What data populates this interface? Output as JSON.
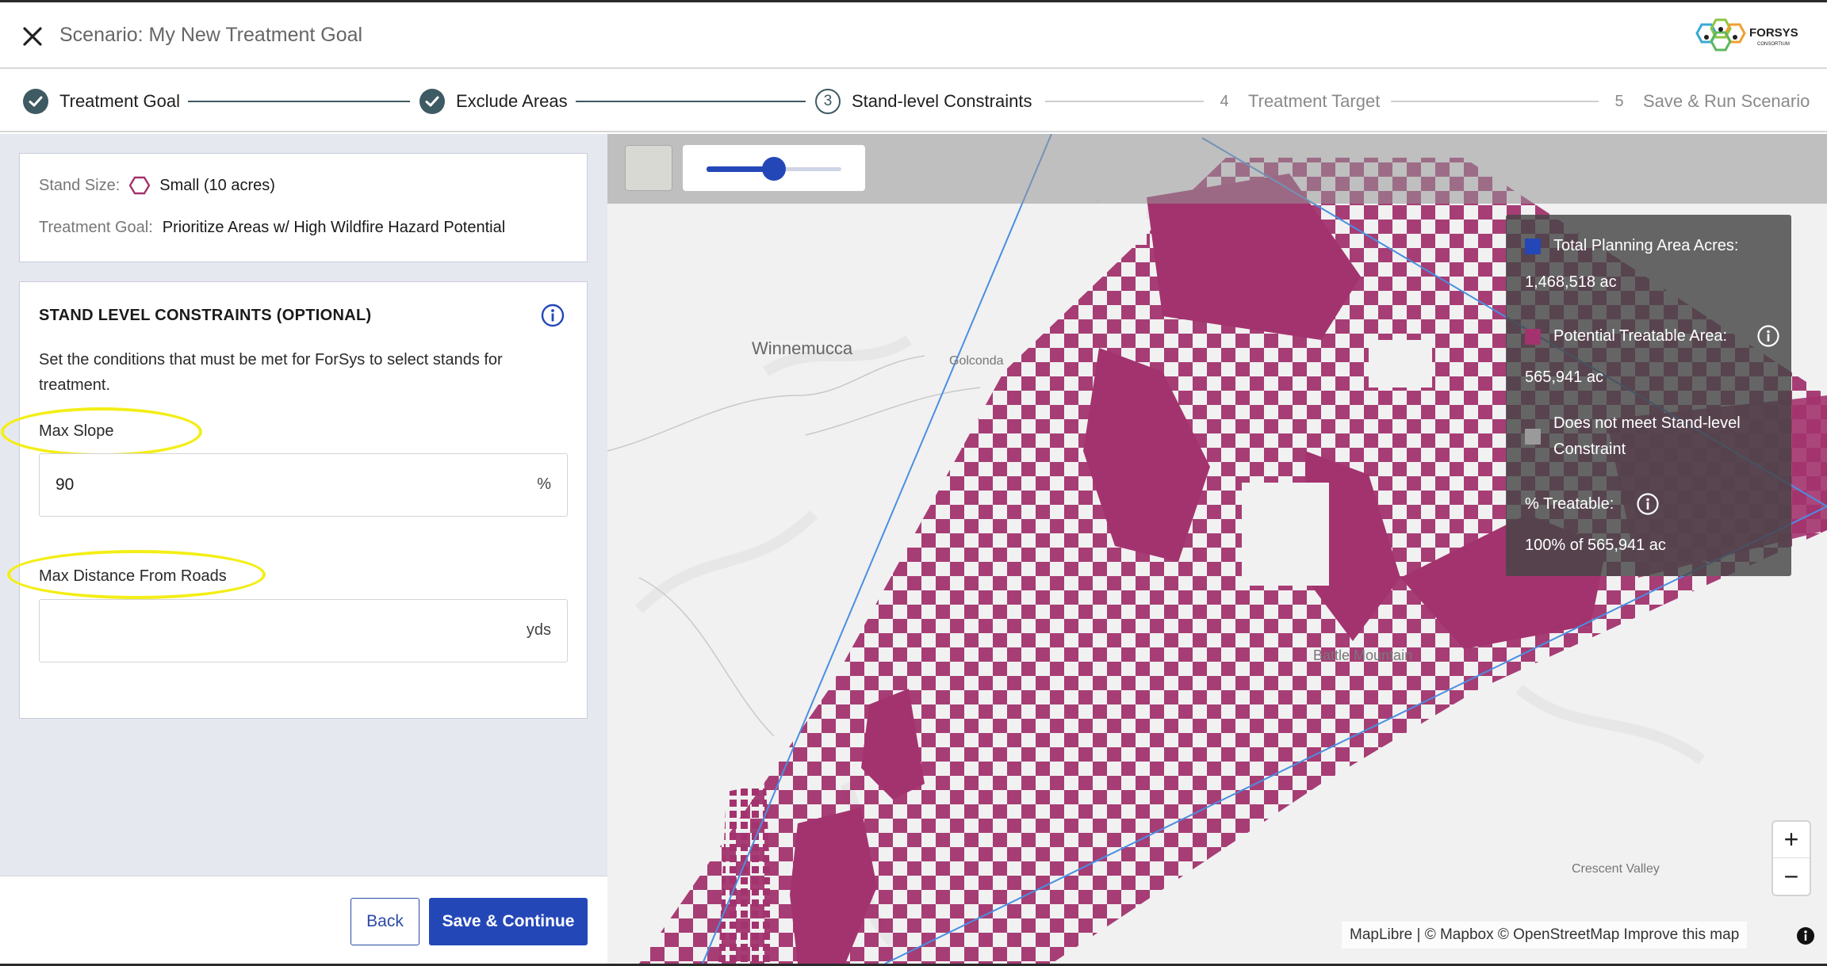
{
  "header": {
    "title": "Scenario: My New Treatment Goal",
    "close_icon": "close-icon",
    "logo_text_top": "FORSYS",
    "logo_text_bottom": "CONSORTIUM"
  },
  "stepper": {
    "steps": [
      {
        "number": "1",
        "label": "Treatment Goal",
        "state": "done"
      },
      {
        "number": "2",
        "label": "Exclude Areas",
        "state": "done"
      },
      {
        "number": "3",
        "label": "Stand-level Constraints",
        "state": "current"
      },
      {
        "number": "4",
        "label": "Treatment Target",
        "state": "future"
      },
      {
        "number": "5",
        "label": "Save & Run Scenario",
        "state": "future"
      }
    ]
  },
  "summary": {
    "stand_size_label": "Stand Size:",
    "stand_size_value": "Small (10 acres)",
    "treatment_goal_label": "Treatment Goal:",
    "treatment_goal_value": "Prioritize Areas w/ High Wildfire Hazard Potential"
  },
  "constraints": {
    "title": "STAND LEVEL CONSTRAINTS (OPTIONAL)",
    "description": "Set the conditions that must be met for ForSys to select stands for treatment.",
    "max_slope_label": "Max Slope",
    "max_slope_value": "90",
    "max_slope_unit": "%",
    "max_distance_label": "Max Distance From Roads",
    "max_distance_value": "",
    "max_distance_unit": "yds"
  },
  "footer": {
    "back_label": "Back",
    "save_label": "Save & Continue"
  },
  "map": {
    "opacity_slider": 0.5,
    "labels": {
      "winnemucca": "Winnemucca",
      "golconda": "Golconda",
      "battle_mountain": "Battle Mountain",
      "crescent_valley": "Crescent Valley"
    },
    "attribution": "MapLibre | © Mapbox © OpenStreetMap Improve this map",
    "zoom_in": "+",
    "zoom_out": "−"
  },
  "legend": {
    "total_label": "Total Planning Area Acres:",
    "total_value": "1,468,518 ac",
    "treatable_label": "Potential Treatable Area:",
    "treatable_value": "565,941 ac",
    "not_meet_label_line1": "Does not meet Stand-level",
    "not_meet_label_line2": "Constraint",
    "pct_label": "% Treatable:",
    "pct_value": "100% of 565,941 ac",
    "colors": {
      "total": "#2447b8",
      "treatable": "#a3336e",
      "not_meet": "#9a9a9a"
    }
  }
}
